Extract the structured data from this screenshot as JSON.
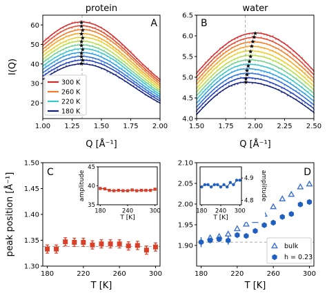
{
  "figure": {
    "colors": {
      "axis": "#000000",
      "bulk": "#3a6fd0",
      "h023": "#1f5fbf",
      "protein_peak": "#d9402a",
      "guide": "#aaaaaa"
    },
    "curve_colors": [
      "#d62728",
      "#e8462a",
      "#f37a26",
      "#f6a623",
      "#e8cf2e",
      "#b7dd4b",
      "#6fd08e",
      "#37c3c9",
      "#2a9ee6",
      "#2f6fe0",
      "#1f3fbf",
      "#101c7a"
    ]
  },
  "chart_data": [
    {
      "panel": "A",
      "type": "line",
      "title": "protein",
      "xlabel": "Q [Å⁻¹]",
      "ylabel": "I(Q)",
      "xlim": [
        1.0,
        2.0
      ],
      "ylim": [
        12,
        65
      ],
      "xticks": [
        "1.00",
        "1.25",
        "1.50",
        "1.75",
        "2.00"
      ],
      "yticks": [
        "20",
        "30",
        "40",
        "50",
        "60"
      ],
      "grid": false,
      "legend_position": "lower-left",
      "legend": [
        {
          "label": "300 K",
          "color": "#d62728"
        },
        {
          "label": "260 K",
          "color": "#f37a26"
        },
        {
          "label": "220 K",
          "color": "#37c3c9"
        },
        {
          "label": "180 K",
          "color": "#101c7a"
        }
      ],
      "curves": {
        "count": 12,
        "peak_x": 1.34,
        "peak_y_top": 61.5,
        "peak_y_bottom": 40.0,
        "value_at_1.00_top": 51,
        "value_at_1.00_bottom": 32,
        "value_at_2.00_top": 32,
        "value_at_2.00_bottom": 20
      },
      "vline_x": 1.335,
      "peak_markers": [
        [
          1.33,
          61.2
        ],
        [
          1.33,
          59.3
        ],
        [
          1.34,
          57.3
        ],
        [
          1.33,
          55.4
        ],
        [
          1.34,
          53.3
        ],
        [
          1.33,
          51.4
        ],
        [
          1.33,
          49.4
        ],
        [
          1.34,
          47.4
        ],
        [
          1.33,
          45.5
        ],
        [
          1.33,
          43.7
        ],
        [
          1.34,
          41.9
        ],
        [
          1.33,
          40.2
        ]
      ]
    },
    {
      "panel": "B",
      "type": "line",
      "title": "water",
      "xlabel": "Q [Å⁻¹]",
      "ylabel": "",
      "xlim": [
        1.5,
        2.5
      ],
      "ylim": [
        4.0,
        6.5
      ],
      "xticks": [
        "1.50",
        "1.75",
        "2.00",
        "2.25",
        "2.50"
      ],
      "yticks": [
        "4.0",
        "4.5",
        "5.0",
        "5.5",
        "6.0",
        "6.5"
      ],
      "grid": false,
      "curves": {
        "count": 12,
        "peak_y_top": 6.07,
        "peak_y_bottom": 4.88,
        "value_at_1.50_top": 5.1,
        "value_at_1.50_bottom": 4.1,
        "value_at_2.50_top": 5.15,
        "value_at_2.50_bottom": 4.15
      },
      "vline_x": 1.915,
      "peak_markers": [
        [
          2.0,
          6.06
        ],
        [
          1.99,
          5.97
        ],
        [
          1.98,
          5.86
        ],
        [
          1.97,
          5.75
        ],
        [
          1.96,
          5.62
        ],
        [
          1.96,
          5.5
        ],
        [
          1.95,
          5.38
        ],
        [
          1.94,
          5.27
        ],
        [
          1.93,
          5.16
        ],
        [
          1.93,
          5.06
        ],
        [
          1.92,
          4.96
        ],
        [
          1.92,
          4.88
        ]
      ]
    },
    {
      "panel": "C",
      "type": "scatter",
      "xlabel": "T [K]",
      "ylabel": "peak position [Å⁻¹]",
      "xlim": [
        175,
        305
      ],
      "ylim": [
        1.3,
        1.5
      ],
      "xticks": [
        "180",
        "220",
        "260",
        "300"
      ],
      "yticks": [
        "1.30",
        "1.35",
        "1.40",
        "1.45",
        "1.50"
      ],
      "grid": false,
      "hline_y": 1.338,
      "series": [
        {
          "x": [
            180,
            190,
            200,
            210,
            220,
            230,
            240,
            250,
            260,
            270,
            280,
            290,
            300
          ],
          "values": [
            1.333,
            1.333,
            1.347,
            1.346,
            1.346,
            1.341,
            1.343,
            1.343,
            1.343,
            1.339,
            1.34,
            1.331,
            1.337
          ],
          "error": 0.008
        }
      ],
      "inset": {
        "xlabel": "T [K]",
        "ylabel": "amplitude",
        "xlim": [
          175,
          305
        ],
        "ylim": [
          35,
          45
        ],
        "xticks": [
          "180",
          "240",
          "300"
        ],
        "yticks": [
          "35",
          "40",
          "45"
        ],
        "x": [
          180,
          190,
          200,
          210,
          220,
          230,
          240,
          250,
          260,
          270,
          280,
          290,
          300
        ],
        "values": [
          39.3,
          39.2,
          38.8,
          38.7,
          38.8,
          38.7,
          38.7,
          38.9,
          38.7,
          38.8,
          38.8,
          38.8,
          39.1
        ]
      }
    },
    {
      "panel": "D",
      "type": "scatter",
      "xlabel": "T [K]",
      "ylabel": "",
      "xlim": [
        175,
        305
      ],
      "ylim": [
        1.85,
        2.1
      ],
      "xticks": [
        "180",
        "220",
        "260",
        "300"
      ],
      "yticks": [
        "1.90",
        "1.95",
        "2.00",
        "2.05",
        "2.10"
      ],
      "grid": false,
      "hline_y": 1.908,
      "legend_position": "lower-right",
      "series": [
        {
          "name": "bulk",
          "marker": "open-triangle",
          "x": [
            190,
            200,
            210,
            220,
            230,
            240,
            250,
            260,
            270,
            280,
            290,
            300
          ],
          "values": [
            1.918,
            1.921,
            1.927,
            1.94,
            1.951,
            1.96,
            1.975,
            1.993,
            2.012,
            2.023,
            2.041,
            2.048
          ]
        },
        {
          "name": "h = 0.23",
          "marker": "filled-hexagon",
          "x": [
            180,
            190,
            200,
            210,
            220,
            230,
            240,
            250,
            260,
            270,
            280,
            290,
            300
          ],
          "values": [
            1.908,
            1.912,
            1.915,
            1.912,
            1.925,
            1.923,
            1.935,
            1.949,
            1.955,
            1.969,
            1.976,
            1.999,
            2.005
          ],
          "error": [
            0.012,
            0.0,
            0.0,
            0.01,
            0.0,
            0.0,
            0.0,
            0.0,
            0.0,
            0.0,
            0.0,
            0.0,
            0.0
          ]
        }
      ],
      "inset": {
        "xlabel": "T [K]",
        "ylabel": "amplitude",
        "xlim": [
          175,
          305
        ],
        "ylim": [
          4.78,
          4.95
        ],
        "xticks": [
          "180",
          "240",
          "300"
        ],
        "yticks": [
          "4.8",
          "4.9"
        ],
        "x": [
          180,
          190,
          200,
          210,
          220,
          230,
          240,
          250,
          260,
          270,
          280,
          290,
          300
        ],
        "values": [
          4.86,
          4.87,
          4.87,
          4.86,
          4.87,
          4.87,
          4.86,
          4.87,
          4.86,
          4.88,
          4.87,
          4.89,
          4.89
        ]
      }
    }
  ]
}
